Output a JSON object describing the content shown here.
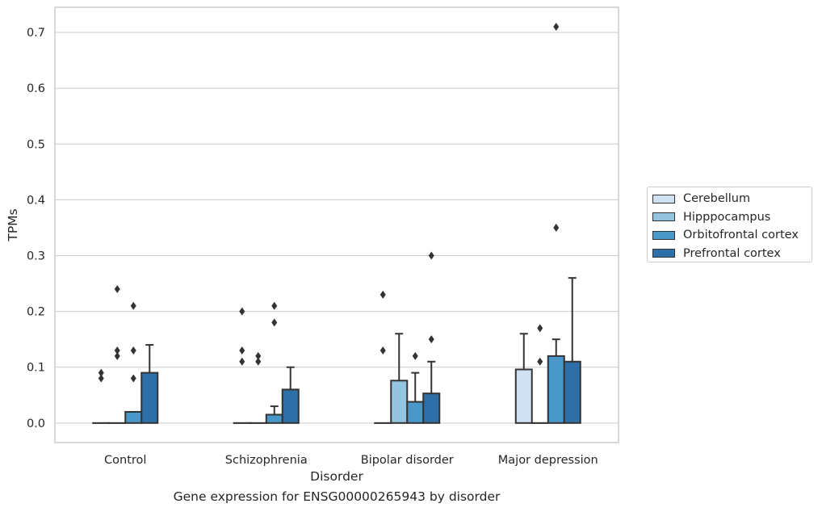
{
  "caption": "Gene expression for ENSG00000265943 by disorder",
  "chart_data": {
    "type": "bar",
    "xlabel": "Disorder",
    "ylabel": "TPMs",
    "categories": [
      "Control",
      "Schizophrenia",
      "Bipolar disorder",
      "Major depression"
    ],
    "ylim": [
      -0.035,
      0.745
    ],
    "yticks": [
      "0.0",
      "0.1",
      "0.2",
      "0.3",
      "0.4",
      "0.5",
      "0.6",
      "0.7"
    ],
    "grid": "horizontal",
    "legend_position": "right",
    "series": [
      {
        "name": "Cerebellum",
        "color": "#d0e1f2",
        "values": [
          0.0,
          0.0,
          0.0,
          0.096
        ],
        "err_upper": [
          null,
          null,
          null,
          0.16
        ],
        "outliers": [
          [
            0.08,
            0.09
          ],
          [
            0.11,
            0.13,
            0.2
          ],
          [
            0.13,
            0.23
          ],
          []
        ]
      },
      {
        "name": "Hipppocampus",
        "color": "#94c4df",
        "values": [
          0.0,
          0.0,
          0.076,
          0.0
        ],
        "err_upper": [
          null,
          null,
          0.16,
          null
        ],
        "outliers": [
          [
            0.12,
            0.13,
            0.24
          ],
          [
            0.11,
            0.12
          ],
          [],
          [
            0.11,
            0.17
          ]
        ]
      },
      {
        "name": "Orbitofrontal cortex",
        "color": "#4a98c9",
        "values": [
          0.02,
          0.015,
          0.038,
          0.12
        ],
        "err_upper": [
          null,
          0.03,
          0.09,
          0.15
        ],
        "outliers": [
          [
            0.08,
            0.13,
            0.21
          ],
          [
            0.18,
            0.21
          ],
          [
            0.12
          ],
          [
            0.35,
            0.71
          ]
        ]
      },
      {
        "name": "Prefrontal cortex",
        "color": "#2e6fa8",
        "values": [
          0.09,
          0.06,
          0.053,
          0.11
        ],
        "err_upper": [
          0.14,
          0.1,
          0.11,
          0.26
        ],
        "outliers": [
          [],
          [],
          [
            0.15,
            0.3
          ],
          []
        ]
      }
    ]
  }
}
